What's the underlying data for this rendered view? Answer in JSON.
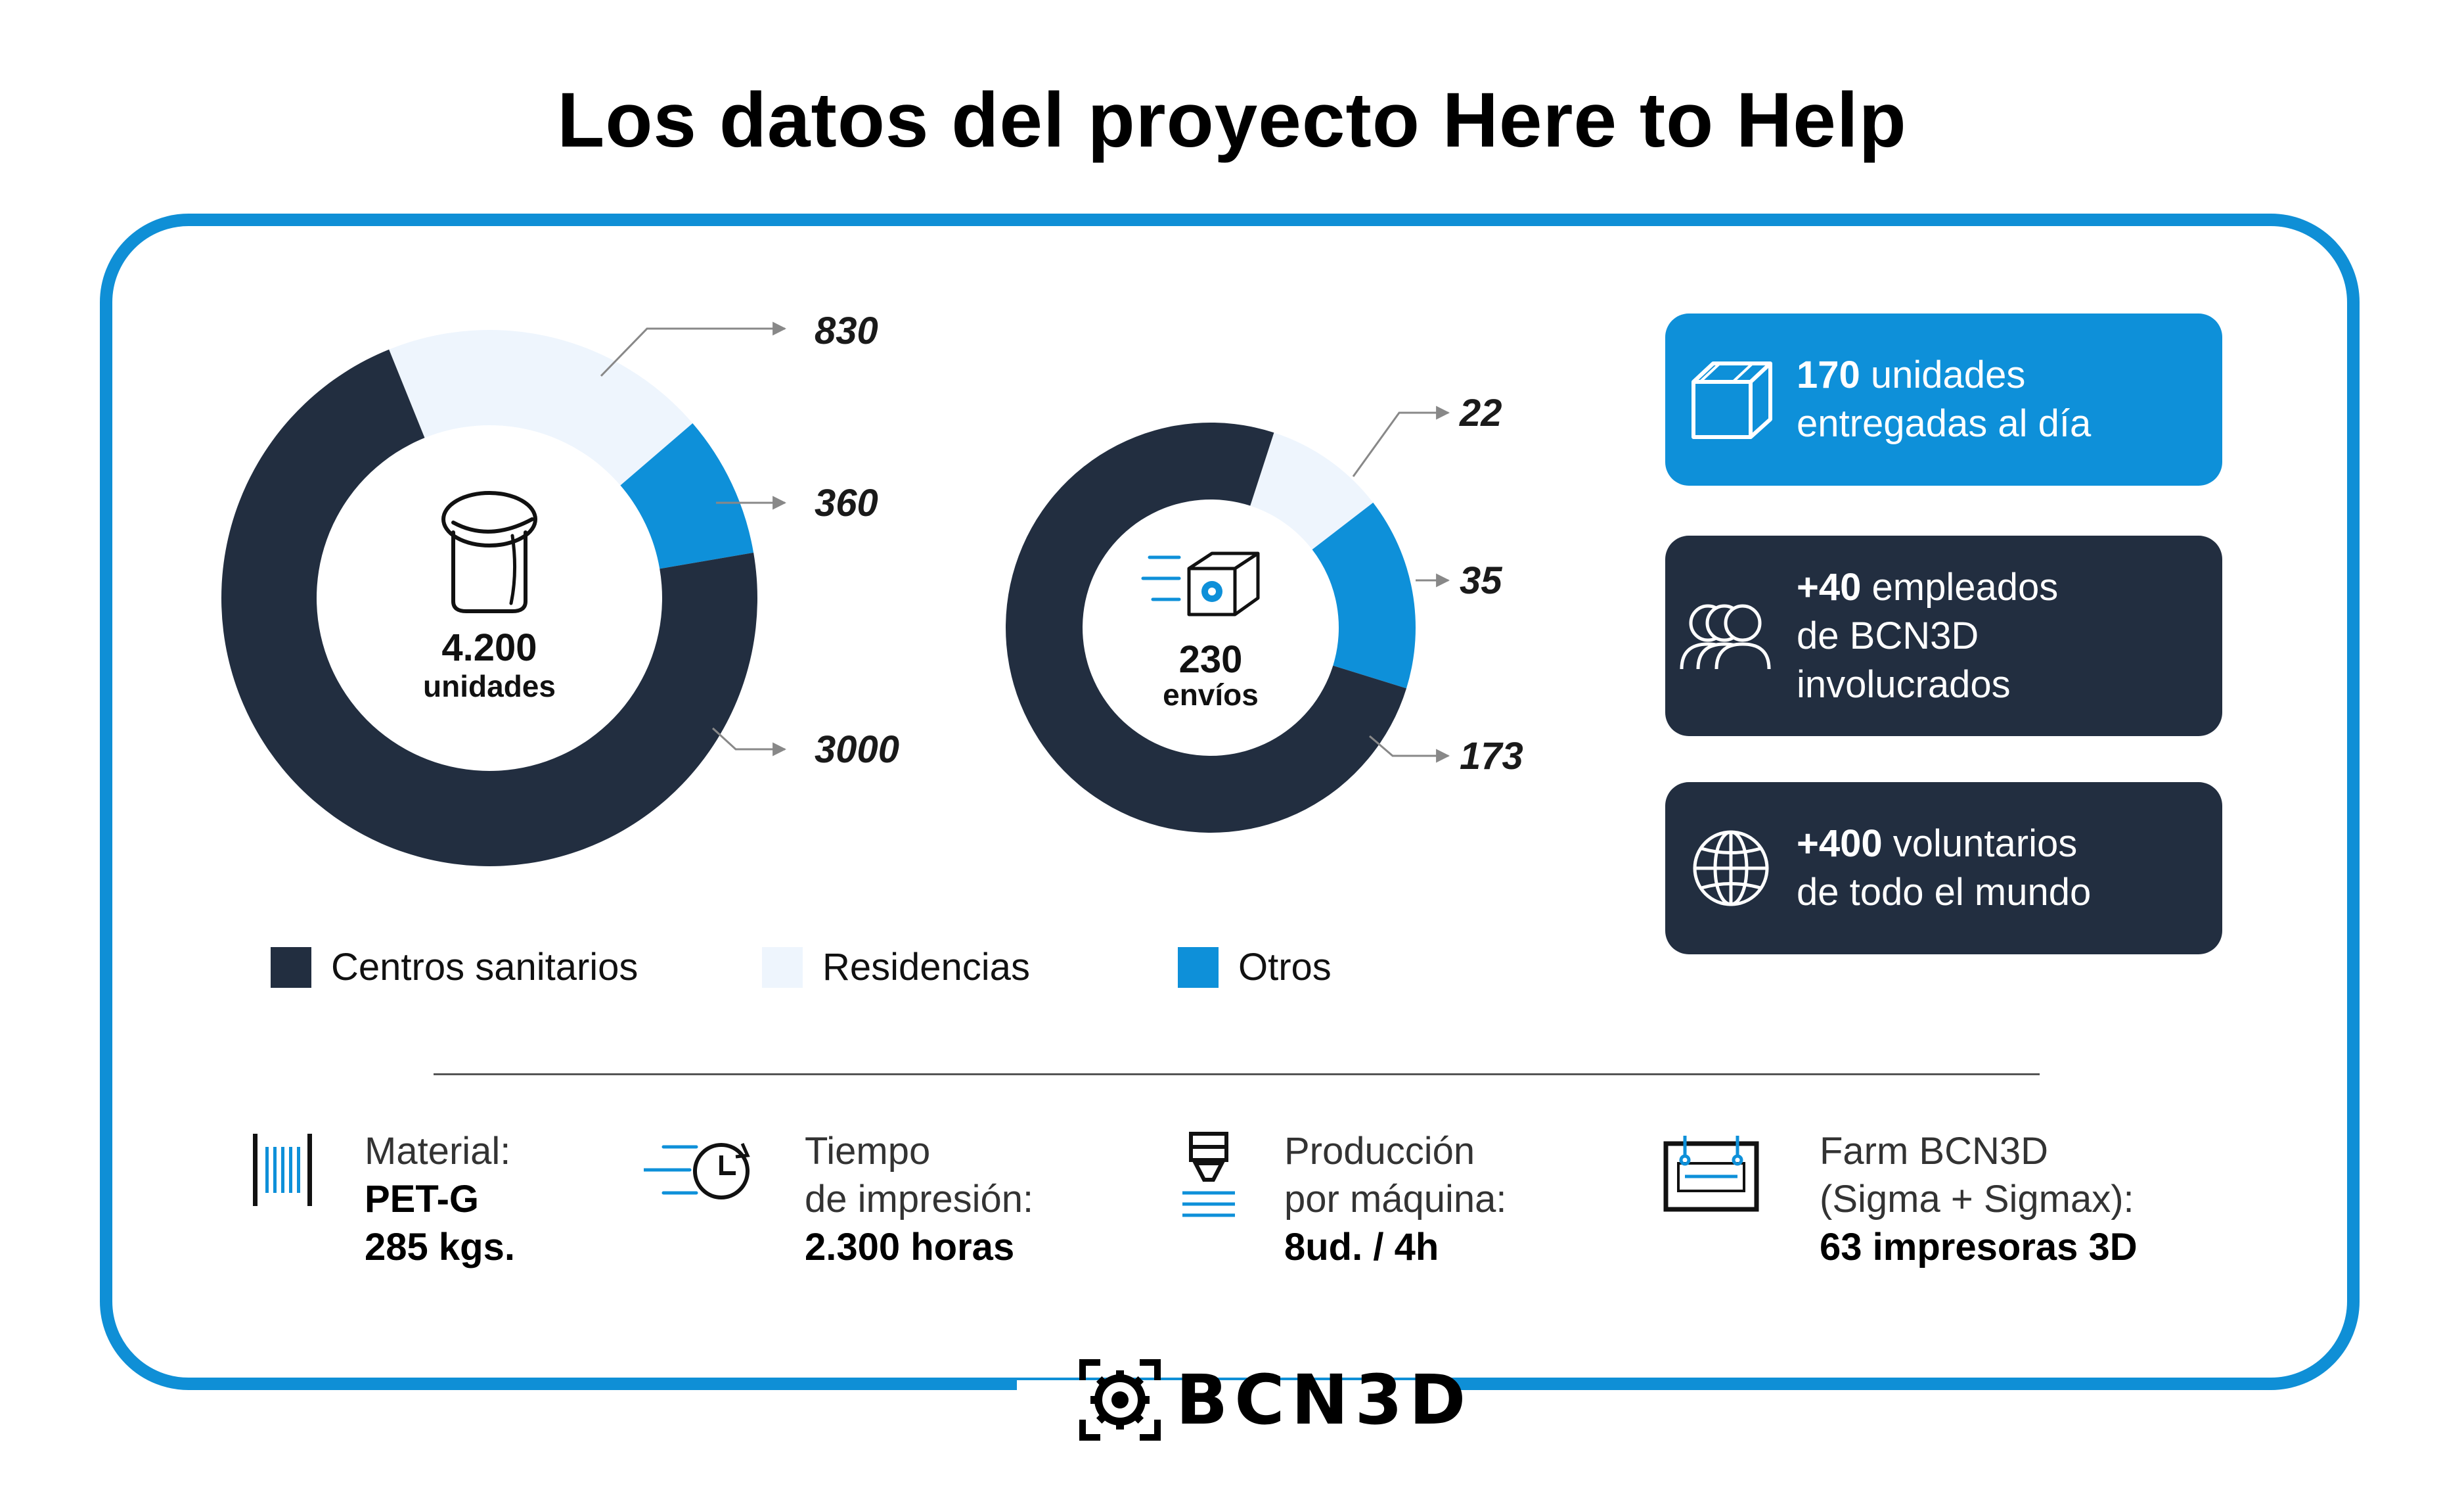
{
  "title": "Los datos del proyecto Here to Help",
  "colors": {
    "dark": "#222e40",
    "light": "#eef5fd",
    "blue": "#0e90d9",
    "frame": "#0f8fd6"
  },
  "chart_data": [
    {
      "type": "donut",
      "center": {
        "number": "4.200",
        "unit": "unidades",
        "icon": "container-icon"
      },
      "categories": [
        "Centros sanitarios",
        "Residencias",
        "Otros"
      ],
      "values": [
        3000,
        830,
        360
      ],
      "value_labels": [
        "3000",
        "830",
        "360"
      ]
    },
    {
      "type": "donut",
      "center": {
        "number": "230",
        "unit": "envíos",
        "icon": "shipping-box-icon"
      },
      "categories": [
        "Centros sanitarios",
        "Residencias",
        "Otros"
      ],
      "values": [
        173,
        22,
        35
      ],
      "value_labels": [
        "173",
        "22",
        "35"
      ]
    }
  ],
  "legend": [
    {
      "label": "Centros sanitarios",
      "color": "#222e40"
    },
    {
      "label": "Residencias",
      "color": "#eef5fd"
    },
    {
      "label": "Otros",
      "color": "#0e90d9"
    }
  ],
  "cards": [
    {
      "bold": "170",
      "rest_line1": " unidades",
      "line2": "entregadas al día",
      "line3": "",
      "icon": "box-icon",
      "color": "#0e90d9"
    },
    {
      "bold": "+40",
      "rest_line1": " empleados",
      "line2": "de BCN3D",
      "line3": "involucrados",
      "icon": "people-icon",
      "color": "#222e40"
    },
    {
      "bold": "+400",
      "rest_line1": " voluntarios",
      "line2": "de todo el mundo",
      "line3": "",
      "icon": "globe-icon",
      "color": "#222e40"
    }
  ],
  "facts": [
    {
      "line1": "Material:",
      "line2": "PET-G",
      "line3": "285 kgs.",
      "icon": "filament-icon"
    },
    {
      "line1": "Tiempo",
      "line2": "de impresión:",
      "line3": "2.300 horas",
      "icon": "clock-icon"
    },
    {
      "line1": "Producción",
      "line2": "por máquina:",
      "line3": "8ud. / 4h",
      "icon": "nozzle-icon"
    },
    {
      "line1": "Farm BCN3D",
      "line2": "(Sigma + Sigmax):",
      "line3": "63 impresoras 3D",
      "icon": "printer-icon"
    }
  ],
  "brand": {
    "name": "BCN3D",
    "icon": "gear-logo-icon"
  }
}
